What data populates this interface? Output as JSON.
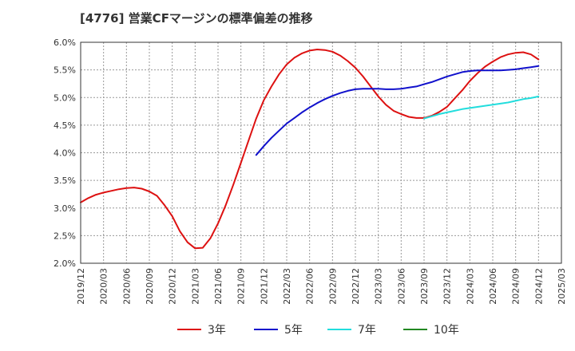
{
  "chart_data": {
    "type": "line",
    "title": "[4776]  営業CFマージンの標準偏差の推移",
    "xlabel": "",
    "ylabel": "",
    "ylim": [
      2.0,
      6.0
    ],
    "y_ticks": [
      "2.0%",
      "2.5%",
      "3.0%",
      "3.5%",
      "4.0%",
      "4.5%",
      "5.0%",
      "5.5%",
      "6.0%"
    ],
    "x_ticks": [
      "2019/12",
      "2020/03",
      "2020/06",
      "2020/09",
      "2020/12",
      "2021/03",
      "2021/06",
      "2021/09",
      "2021/12",
      "2022/03",
      "2022/06",
      "2022/09",
      "2022/12",
      "2023/03",
      "2023/06",
      "2023/09",
      "2023/12",
      "2024/03",
      "2024/06",
      "2024/09",
      "2024/12",
      "2025/03"
    ],
    "grid": true,
    "legend_position": "bottom",
    "series": [
      {
        "name": "3年",
        "color": "#dd1111",
        "points": [
          [
            "2019-12",
            3.1
          ],
          [
            "2020-01",
            3.18
          ],
          [
            "2020-02",
            3.24
          ],
          [
            "2020-03",
            3.28
          ],
          [
            "2020-04",
            3.31
          ],
          [
            "2020-05",
            3.34
          ],
          [
            "2020-06",
            3.36
          ],
          [
            "2020-07",
            3.37
          ],
          [
            "2020-08",
            3.35
          ],
          [
            "2020-09",
            3.3
          ],
          [
            "2020-10",
            3.22
          ],
          [
            "2020-11",
            3.05
          ],
          [
            "2020-12",
            2.85
          ],
          [
            "2021-01",
            2.58
          ],
          [
            "2021-02",
            2.38
          ],
          [
            "2021-03",
            2.27
          ],
          [
            "2021-04",
            2.28
          ],
          [
            "2021-05",
            2.45
          ],
          [
            "2021-06",
            2.72
          ],
          [
            "2021-07",
            3.05
          ],
          [
            "2021-08",
            3.42
          ],
          [
            "2021-09",
            3.82
          ],
          [
            "2021-10",
            4.22
          ],
          [
            "2021-11",
            4.62
          ],
          [
            "2021-12",
            4.95
          ],
          [
            "2022-01",
            5.2
          ],
          [
            "2022-02",
            5.42
          ],
          [
            "2022-03",
            5.6
          ],
          [
            "2022-04",
            5.72
          ],
          [
            "2022-05",
            5.8
          ],
          [
            "2022-06",
            5.85
          ],
          [
            "2022-07",
            5.87
          ],
          [
            "2022-08",
            5.86
          ],
          [
            "2022-09",
            5.83
          ],
          [
            "2022-10",
            5.76
          ],
          [
            "2022-11",
            5.66
          ],
          [
            "2022-12",
            5.54
          ],
          [
            "2023-01",
            5.38
          ],
          [
            "2023-02",
            5.2
          ],
          [
            "2023-03",
            5.02
          ],
          [
            "2023-04",
            4.87
          ],
          [
            "2023-05",
            4.76
          ],
          [
            "2023-06",
            4.7
          ],
          [
            "2023-07",
            4.65
          ],
          [
            "2023-08",
            4.63
          ],
          [
            "2023-09",
            4.63
          ],
          [
            "2023-10",
            4.67
          ],
          [
            "2023-11",
            4.74
          ],
          [
            "2023-12",
            4.83
          ],
          [
            "2024-01",
            4.98
          ],
          [
            "2024-02",
            5.13
          ],
          [
            "2024-03",
            5.3
          ],
          [
            "2024-04",
            5.44
          ],
          [
            "2024-05",
            5.56
          ],
          [
            "2024-06",
            5.65
          ],
          [
            "2024-07",
            5.73
          ],
          [
            "2024-08",
            5.78
          ],
          [
            "2024-09",
            5.81
          ],
          [
            "2024-10",
            5.82
          ],
          [
            "2024-11",
            5.78
          ],
          [
            "2024-12",
            5.69
          ]
        ]
      },
      {
        "name": "5年",
        "color": "#1111cc",
        "points": [
          [
            "2021-11",
            3.96
          ],
          [
            "2021-12",
            4.12
          ],
          [
            "2022-01",
            4.27
          ],
          [
            "2022-02",
            4.4
          ],
          [
            "2022-03",
            4.53
          ],
          [
            "2022-04",
            4.63
          ],
          [
            "2022-05",
            4.73
          ],
          [
            "2022-06",
            4.82
          ],
          [
            "2022-07",
            4.9
          ],
          [
            "2022-08",
            4.97
          ],
          [
            "2022-09",
            5.03
          ],
          [
            "2022-10",
            5.08
          ],
          [
            "2022-11",
            5.12
          ],
          [
            "2022-12",
            5.15
          ],
          [
            "2023-01",
            5.16
          ],
          [
            "2023-02",
            5.16
          ],
          [
            "2023-03",
            5.16
          ],
          [
            "2023-04",
            5.15
          ],
          [
            "2023-05",
            5.15
          ],
          [
            "2023-06",
            5.16
          ],
          [
            "2023-07",
            5.18
          ],
          [
            "2023-08",
            5.2
          ],
          [
            "2023-09",
            5.24
          ],
          [
            "2023-10",
            5.28
          ],
          [
            "2023-11",
            5.33
          ],
          [
            "2023-12",
            5.38
          ],
          [
            "2024-01",
            5.42
          ],
          [
            "2024-02",
            5.46
          ],
          [
            "2024-03",
            5.48
          ],
          [
            "2024-04",
            5.49
          ],
          [
            "2024-05",
            5.49
          ],
          [
            "2024-06",
            5.49
          ],
          [
            "2024-07",
            5.49
          ],
          [
            "2024-08",
            5.5
          ],
          [
            "2024-09",
            5.51
          ],
          [
            "2024-10",
            5.53
          ],
          [
            "2024-11",
            5.55
          ],
          [
            "2024-12",
            5.57
          ]
        ]
      },
      {
        "name": "7年",
        "color": "#22dddd",
        "points": [
          [
            "2023-09",
            4.62
          ],
          [
            "2023-10",
            4.66
          ],
          [
            "2023-11",
            4.7
          ],
          [
            "2023-12",
            4.73
          ],
          [
            "2024-01",
            4.76
          ],
          [
            "2024-02",
            4.79
          ],
          [
            "2024-03",
            4.81
          ],
          [
            "2024-04",
            4.83
          ],
          [
            "2024-05",
            4.85
          ],
          [
            "2024-06",
            4.87
          ],
          [
            "2024-07",
            4.89
          ],
          [
            "2024-08",
            4.91
          ],
          [
            "2024-09",
            4.94
          ],
          [
            "2024-10",
            4.97
          ],
          [
            "2024-11",
            4.99
          ],
          [
            "2024-12",
            5.02
          ]
        ]
      },
      {
        "name": "10年",
        "color": "#228822",
        "points": []
      }
    ]
  }
}
